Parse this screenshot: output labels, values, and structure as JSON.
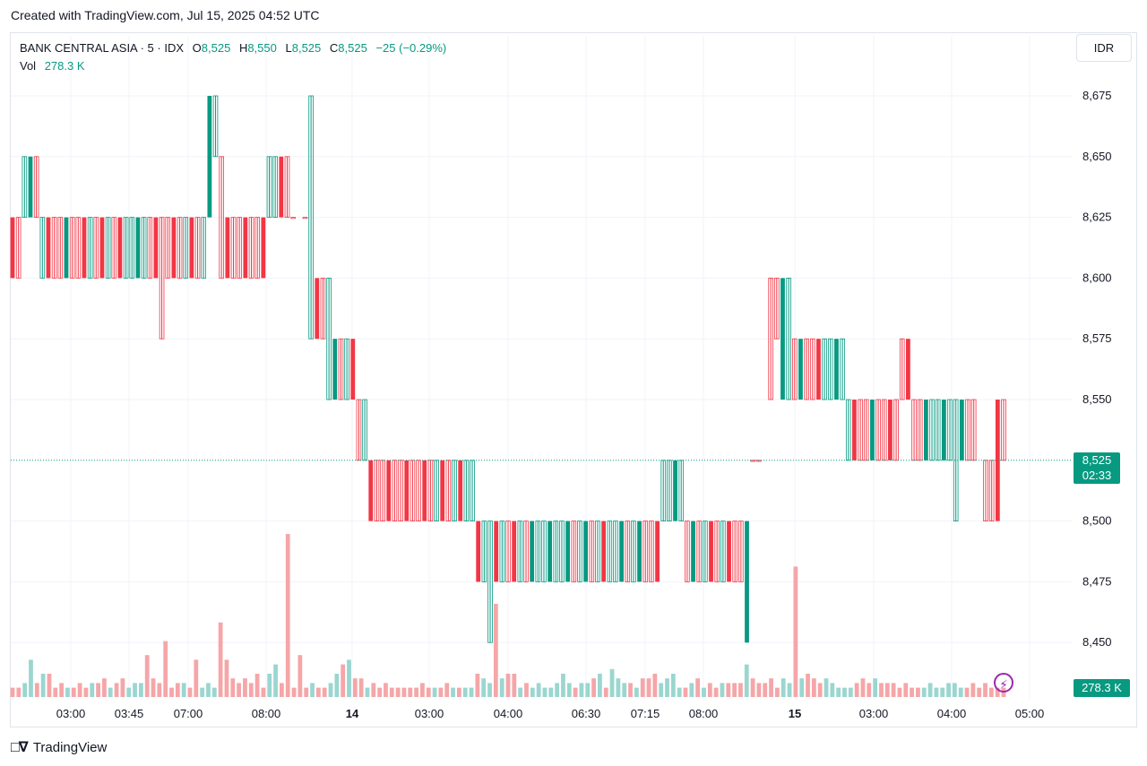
{
  "caption": "Created with TradingView.com, Jul 15, 2025 04:52 UTC",
  "legend": {
    "title": "BANK CENTRAL ASIA · 5 · IDX",
    "open_k": "O",
    "open": "8,525",
    "high_k": "H",
    "high": "8,550",
    "low_k": "L",
    "low": "8,525",
    "close_k": "C",
    "close": "8,525",
    "change": "−25 (−0.29%)",
    "vol_k": "Vol",
    "vol": "278.3 K"
  },
  "currency": "IDR",
  "last_price": "8,525",
  "countdown": "02:33",
  "vol_tag": "278.3 K",
  "brand": "TradingView",
  "icons": {
    "brand": "tradingview-logo-icon",
    "alert": "lightning-bolt-icon"
  },
  "colors": {
    "up": "#089981",
    "down": "#f23645",
    "vol_up": "#9bd6d0",
    "vol_down": "#f5a6a8",
    "grid": "#f0f3fa"
  },
  "chart_data": {
    "type": "candlestick",
    "y_ticks": [
      8675,
      8650,
      8625,
      8600,
      8575,
      8550,
      8500,
      8475,
      8450
    ],
    "y_tick_labels": [
      "8,675",
      "8,650",
      "8,625",
      "8,600",
      "8,575",
      "8,550",
      "8,500",
      "8,475",
      "8,450"
    ],
    "y_range": [
      8440,
      8690
    ],
    "last_price": 8525,
    "x_labels": [
      "03:00",
      "03:45",
      "07:00",
      "08:00",
      "14",
      "03:00",
      "04:00",
      "06:30",
      "07:15",
      "08:00",
      "15",
      "03:00",
      "04:00",
      "05:00"
    ],
    "x_label_bold": [
      false,
      false,
      false,
      false,
      true,
      false,
      false,
      false,
      false,
      false,
      true,
      false,
      false,
      false
    ],
    "segments": [
      {
        "from": 8625,
        "seq": [
          [
            8625,
            8600,
            0
          ],
          [
            8625,
            8600,
            0
          ],
          [
            8650,
            8625,
            1
          ],
          [
            8650,
            8625,
            1
          ],
          [
            8650,
            8625,
            0
          ],
          [
            8625,
            8600,
            1
          ],
          [
            8625,
            8600,
            0
          ],
          [
            8625,
            8600,
            0
          ],
          [
            8625,
            8600,
            0
          ],
          [
            8625,
            8600,
            1
          ],
          [
            8625,
            8600,
            0
          ],
          [
            8625,
            8600,
            0
          ],
          [
            8625,
            8600,
            0
          ],
          [
            8625,
            8600,
            1
          ],
          [
            8625,
            8600,
            0
          ],
          [
            8625,
            8600,
            0
          ],
          [
            8625,
            8600,
            1
          ],
          [
            8625,
            8600,
            0
          ],
          [
            8625,
            8600,
            0
          ],
          [
            8625,
            8600,
            1
          ],
          [
            8625,
            8600,
            1
          ],
          [
            8625,
            8600,
            1
          ],
          [
            8625,
            8600,
            1
          ],
          [
            8625,
            8600,
            0
          ],
          [
            8625,
            8600,
            0
          ],
          [
            8625,
            8575,
            0
          ],
          [
            8625,
            8600,
            0
          ],
          [
            8625,
            8600,
            0
          ],
          [
            8625,
            8600,
            0
          ],
          [
            8625,
            8600,
            1
          ],
          [
            8625,
            8600,
            0
          ],
          [
            8625,
            8600,
            0
          ],
          [
            8625,
            8600,
            1
          ],
          [
            8675,
            8625,
            1
          ],
          [
            8675,
            8650,
            1
          ],
          [
            8650,
            8600,
            0
          ],
          [
            8625,
            8600,
            0
          ],
          [
            8625,
            8600,
            0
          ],
          [
            8625,
            8600,
            0
          ],
          [
            8625,
            8600,
            0
          ],
          [
            8625,
            8600,
            0
          ],
          [
            8625,
            8600,
            0
          ],
          [
            8625,
            8600,
            0
          ],
          [
            8650,
            8625,
            1
          ],
          [
            8650,
            8625,
            1
          ],
          [
            8650,
            8625,
            0
          ],
          [
            8650,
            8625,
            0
          ],
          [
            8625,
            8625,
            0
          ],
          [
            8625,
            8625,
            0
          ],
          [
            8625,
            8625,
            0
          ]
        ]
      },
      {
        "from": 8650,
        "seq": [
          [
            8675,
            8575,
            1
          ],
          [
            8600,
            8575,
            0
          ],
          [
            8600,
            8575,
            0
          ],
          [
            8600,
            8550,
            1
          ],
          [
            8575,
            8550,
            1
          ],
          [
            8575,
            8550,
            0
          ],
          [
            8575,
            8550,
            1
          ],
          [
            8575,
            8550,
            0
          ],
          [
            8550,
            8525,
            0
          ],
          [
            8550,
            8525,
            1
          ],
          [
            8525,
            8500,
            0
          ],
          [
            8525,
            8500,
            0
          ],
          [
            8525,
            8500,
            0
          ],
          [
            8525,
            8500,
            0
          ],
          [
            8525,
            8500,
            0
          ],
          [
            8525,
            8500,
            0
          ],
          [
            8525,
            8500,
            0
          ],
          [
            8525,
            8500,
            0
          ],
          [
            8525,
            8500,
            0
          ],
          [
            8525,
            8500,
            0
          ],
          [
            8525,
            8500,
            0
          ],
          [
            8525,
            8500,
            1
          ],
          [
            8525,
            8500,
            0
          ],
          [
            8525,
            8500,
            0
          ],
          [
            8525,
            8500,
            1
          ],
          [
            8525,
            8500,
            0
          ],
          [
            8525,
            8500,
            1
          ],
          [
            8525,
            8500,
            1
          ]
        ]
      },
      {
        "from": 8500,
        "seq": [
          [
            8500,
            8475,
            0
          ],
          [
            8500,
            8475,
            1
          ],
          [
            8500,
            8450,
            1
          ],
          [
            8500,
            8475,
            0
          ],
          [
            8500,
            8475,
            1
          ],
          [
            8500,
            8475,
            0
          ],
          [
            8500,
            8475,
            0
          ],
          [
            8500,
            8475,
            1
          ],
          [
            8500,
            8475,
            0
          ],
          [
            8500,
            8475,
            1
          ],
          [
            8500,
            8475,
            1
          ],
          [
            8500,
            8475,
            1
          ],
          [
            8500,
            8475,
            1
          ],
          [
            8500,
            8475,
            1
          ],
          [
            8500,
            8475,
            1
          ],
          [
            8500,
            8475,
            1
          ],
          [
            8500,
            8475,
            0
          ],
          [
            8500,
            8475,
            1
          ],
          [
            8500,
            8475,
            1
          ],
          [
            8500,
            8475,
            0
          ],
          [
            8500,
            8475,
            1
          ],
          [
            8500,
            8475,
            0
          ],
          [
            8500,
            8475,
            1
          ],
          [
            8500,
            8475,
            1
          ],
          [
            8500,
            8475,
            1
          ],
          [
            8500,
            8475,
            0
          ],
          [
            8500,
            8475,
            1
          ],
          [
            8500,
            8475,
            1
          ],
          [
            8500,
            8475,
            0
          ],
          [
            8500,
            8475,
            0
          ],
          [
            8500,
            8475,
            0
          ],
          [
            8525,
            8500,
            1
          ],
          [
            8525,
            8500,
            1
          ],
          [
            8525,
            8500,
            1
          ],
          [
            8525,
            8500,
            1
          ],
          [
            8500,
            8475,
            0
          ],
          [
            8500,
            8475,
            1
          ],
          [
            8500,
            8475,
            0
          ],
          [
            8500,
            8475,
            1
          ],
          [
            8500,
            8475,
            0
          ],
          [
            8500,
            8475,
            0
          ],
          [
            8500,
            8475,
            1
          ],
          [
            8500,
            8475,
            0
          ],
          [
            8500,
            8475,
            0
          ],
          [
            8500,
            8475,
            0
          ],
          [
            8500,
            8450,
            1
          ],
          [
            8525,
            8525,
            0
          ],
          [
            8525,
            8525,
            0
          ],
          [
            8525,
            8525,
            0
          ]
        ]
      },
      {
        "from": 8575,
        "seq": [
          [
            8600,
            8550,
            0
          ],
          [
            8600,
            8575,
            0
          ],
          [
            8600,
            8550,
            1
          ],
          [
            8600,
            8550,
            1
          ],
          [
            8575,
            8550,
            0
          ],
          [
            8575,
            8550,
            1
          ],
          [
            8575,
            8550,
            0
          ],
          [
            8575,
            8550,
            0
          ],
          [
            8575,
            8550,
            0
          ],
          [
            8575,
            8550,
            1
          ],
          [
            8575,
            8550,
            1
          ],
          [
            8575,
            8550,
            1
          ],
          [
            8575,
            8550,
            1
          ],
          [
            8550,
            8525,
            1
          ],
          [
            8550,
            8525,
            0
          ],
          [
            8550,
            8525,
            0
          ],
          [
            8550,
            8525,
            0
          ],
          [
            8550,
            8525,
            1
          ],
          [
            8550,
            8525,
            0
          ],
          [
            8550,
            8525,
            0
          ],
          [
            8550,
            8525,
            0
          ],
          [
            8550,
            8525,
            0
          ],
          [
            8575,
            8550,
            0
          ],
          [
            8575,
            8550,
            0
          ],
          [
            8550,
            8525,
            0
          ],
          [
            8550,
            8525,
            0
          ],
          [
            8550,
            8525,
            1
          ],
          [
            8550,
            8525,
            1
          ],
          [
            8550,
            8525,
            1
          ],
          [
            8550,
            8525,
            1
          ],
          [
            8550,
            8525,
            1
          ],
          [
            8550,
            8500,
            1
          ],
          [
            8550,
            8525,
            1
          ],
          [
            8550,
            8525,
            0
          ],
          [
            8550,
            8525,
            0
          ],
          [
            8525,
            8525,
            0
          ],
          [
            8525,
            8500,
            0
          ],
          [
            8525,
            8500,
            0
          ],
          [
            8550,
            8500,
            0
          ],
          [
            8550,
            8525,
            0
          ]
        ]
      }
    ],
    "volume_relative": [
      2,
      2,
      3,
      8,
      3,
      5,
      5,
      2,
      3,
      2,
      2,
      3,
      2,
      3,
      3,
      4,
      2,
      3,
      4,
      2,
      3,
      3,
      9,
      4,
      3,
      12,
      2,
      3,
      3,
      2,
      8,
      2,
      3,
      2,
      16,
      8,
      4,
      3,
      4,
      3,
      5,
      2,
      5,
      7,
      3,
      35,
      2,
      9,
      2,
      3,
      2,
      2,
      3,
      5,
      7,
      8,
      4,
      4,
      2,
      3,
      2,
      3,
      2,
      2,
      2,
      2,
      2,
      3,
      2,
      2,
      2,
      3,
      2,
      2,
      2,
      2,
      5,
      4,
      3,
      20,
      4,
      5,
      5,
      2,
      3,
      2,
      3,
      2,
      2,
      3,
      5,
      3,
      2,
      3,
      3,
      4,
      5,
      2,
      6,
      4,
      3,
      3,
      2,
      4,
      4,
      5,
      3,
      4,
      5,
      2,
      2,
      3,
      4,
      2,
      3,
      2,
      3,
      3,
      3,
      3,
      7,
      4,
      3,
      3,
      4,
      2,
      4,
      3,
      28,
      4,
      5,
      4,
      3,
      4,
      3,
      2,
      2,
      2,
      3,
      4,
      3,
      4,
      3,
      3,
      3,
      2,
      3,
      2,
      2,
      2,
      3,
      2,
      2,
      3,
      3,
      2,
      2,
      3,
      2,
      3,
      2,
      2,
      2
    ]
  }
}
